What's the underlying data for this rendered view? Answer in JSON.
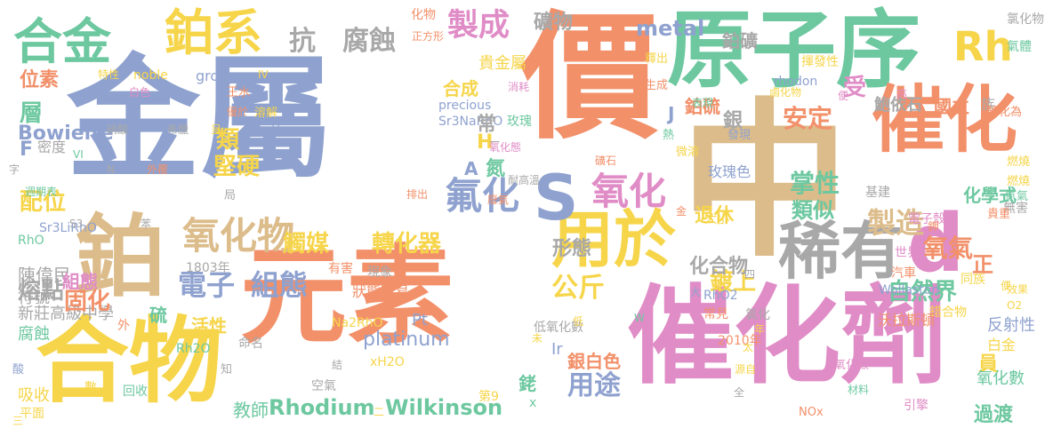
{
  "words": [
    "金屬",
    "元素",
    "中",
    "價",
    "原子序",
    "催化劑",
    "合物",
    "鉑",
    "催化",
    "稀有",
    "用於",
    "d",
    "Rh",
    "S",
    "合金",
    "鉑系",
    "抗",
    "腐蝕",
    "製成",
    "礦物",
    "metal",
    "氧化物",
    "氧化",
    "氟化",
    "觸媒",
    "轉化器",
    "電子",
    "組態",
    "公斤",
    "掌性",
    "退休",
    "製造",
    "類似",
    "化學式",
    "氧氣",
    "自然界",
    "正",
    "安定",
    "堅硬",
    "類",
    "配位",
    "層",
    "位素",
    "Bowieite",
    "F",
    "密度",
    "熔點",
    "陳偉民",
    "符號",
    "新莊高級中學",
    "硫",
    "活性",
    "腐蝕",
    "吸收",
    "平面",
    "教師",
    "Rhodium",
    "Wilkinson",
    "用途",
    "銠",
    "銀白色",
    "鍍上",
    "形態",
    "化合物",
    "Pt",
    "platinum",
    "Ir",
    "過渡",
    "員",
    "氧化數",
    "反射性",
    "貴金屬",
    "鉑硫",
    "鉑礦",
    "鮑依石",
    "國立",
    "族",
    "銀",
    "rhodon",
    "noble",
    "group",
    "precious",
    "Sr3NaRhO",
    "玫瑰",
    "玫瑰色",
    "受",
    "常",
    "合成",
    "H",
    "A",
    "氮",
    "J",
    "白金",
    "錯合物",
    "沃拉斯頓",
    "Wollaston",
    "RhO2",
    "常見",
    "氯化",
    "汽車",
    "引擎",
    "NOx",
    "氧化碳",
    "第9",
    "Na2RhO",
    "xH2O",
    "Rh2O",
    "命名",
    "1803年",
    "現象",
    "有害",
    "狀態不易",
    "低氧化數",
    "2010年",
    "世界",
    "電子殼層",
    "基建",
    "無害",
    "金",
    "大小",
    "燃燒",
    "燃燒",
    "氮氣",
    "鉀",
    "同族",
    "貴重",
    "化物",
    "正方形",
    "釋出",
    "生成",
    "揮發性",
    "氯化物",
    "氣體",
    "轉化為",
    "發現",
    "熱",
    "微溶",
    "溶解",
    "王水",
    "硝酸",
    "希臘",
    "呈",
    "優於",
    "特性",
    "白色",
    "IV",
    "V",
    "VI",
    "N",
    "外覆",
    "字",
    "局",
    "週期表",
    "Sr3LiRhO",
    "S3",
    "RhO",
    "苯",
    "廢氣",
    "排出",
    "耐高溫",
    "礦石",
    "氧化態",
    "消耗",
    "表現",
    "便",
    "鹵化物",
    "高",
    "四",
    "大",
    "效果",
    "O2",
    "材料",
    "源自",
    "年",
    "太",
    "全",
    "W",
    "低",
    "未",
    "外",
    "三",
    "酸",
    "回收",
    "數",
    "空氣",
    "結",
    "知",
    "固化",
    "組態",
    "二",
    "一",
    "x",
    "便",
    "呈現",
    "材料"
  ]
}
